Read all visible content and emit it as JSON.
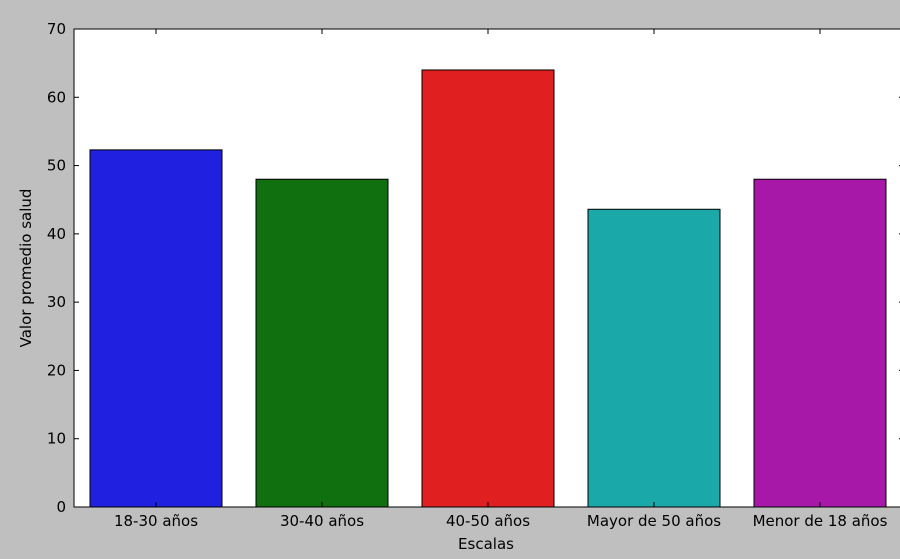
{
  "chart_data": {
    "type": "bar",
    "categories": [
      "18-30 años",
      "30-40 años",
      "40-50 años",
      "Mayor de 50 años",
      "Menor de 18 años"
    ],
    "values": [
      52.3,
      48.0,
      64.0,
      43.6,
      48.0
    ],
    "colors": [
      "#2020e0",
      "#107010",
      "#e02020",
      "#1aa8a8",
      "#a818a8"
    ],
    "title": "",
    "xlabel": "Escalas",
    "ylabel": "Valor promedio salud",
    "ylim": [
      0,
      70
    ],
    "yticks": [
      0,
      10,
      20,
      30,
      40,
      50,
      60,
      70
    ],
    "grid": false,
    "legend": "none"
  },
  "style": {
    "page_background": "#bfbfbf",
    "plot_background": "#ffffff",
    "axis_color": "#000000"
  }
}
